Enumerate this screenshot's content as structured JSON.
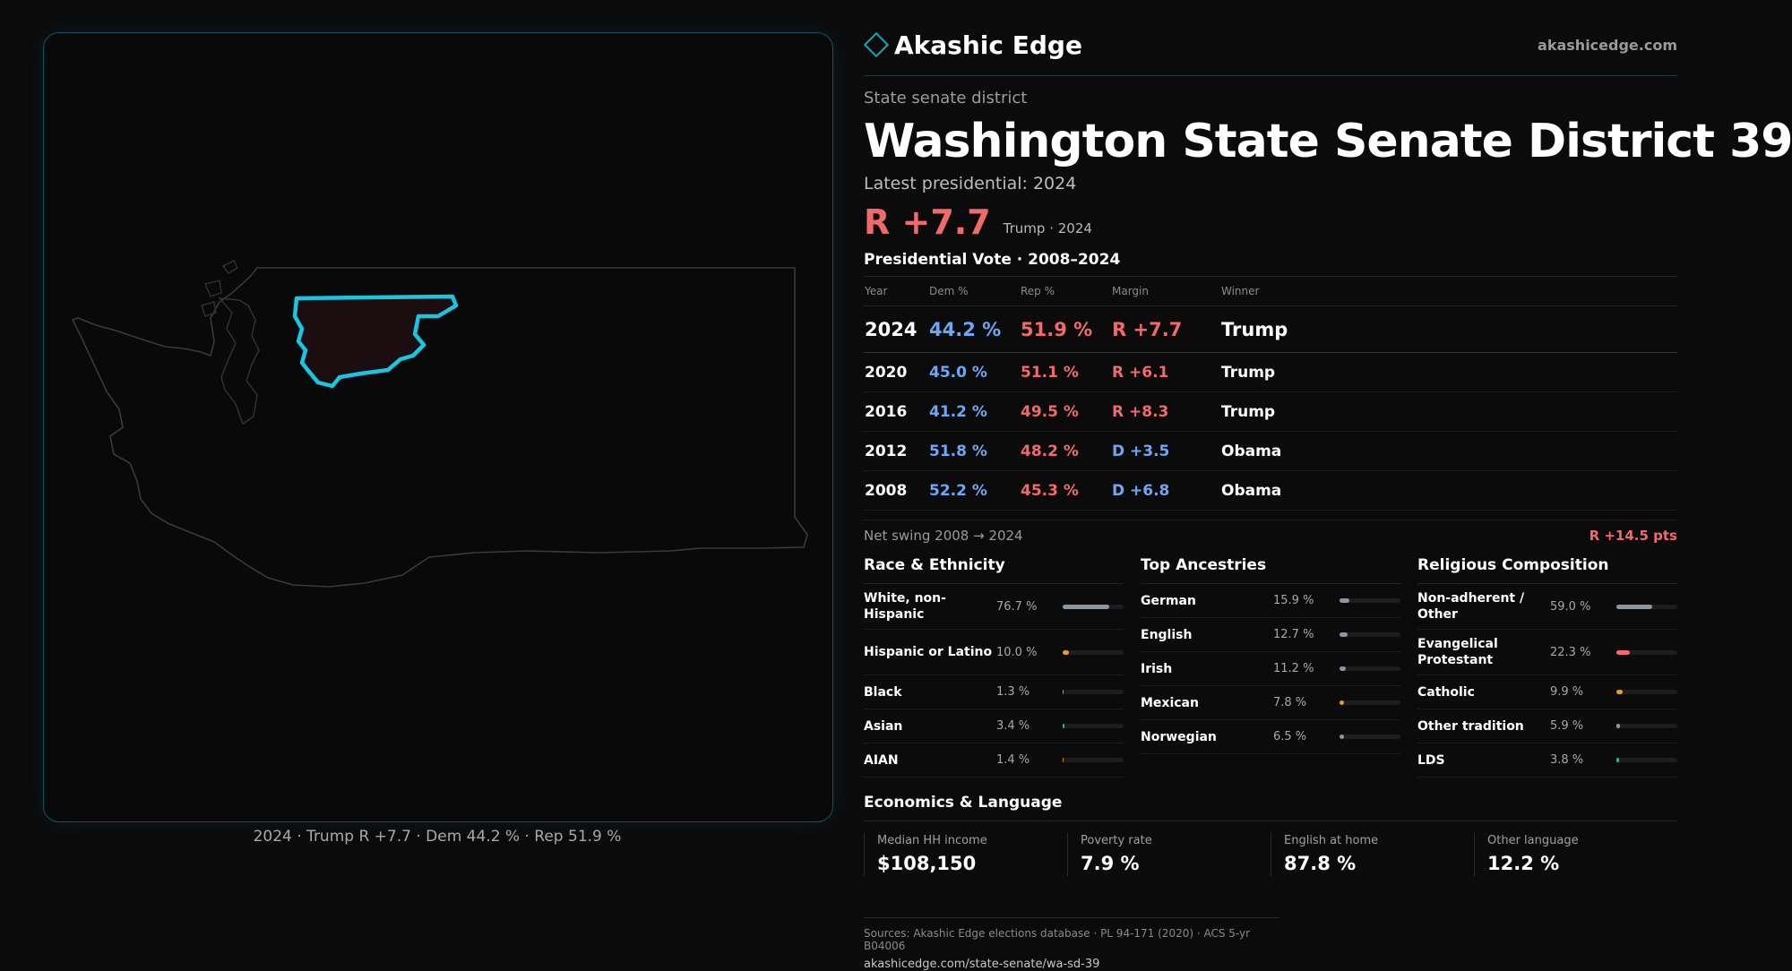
{
  "brand": {
    "name": "Akashic Edge",
    "url": "akashicedge.com",
    "accent": "#1aa6b5"
  },
  "kicker": "State senate district",
  "title": "Washington State Senate District 39",
  "latest_label": "Latest presidential: 2024",
  "headline": {
    "margin": "R +7.7",
    "sub": "Trump · 2024"
  },
  "colors": {
    "dem": "#6ea8f5",
    "rep": "#ef6b6b",
    "district": "#19c6e0"
  },
  "votes": {
    "title": "Presidential Vote · 2008–2024",
    "headers": [
      "Year",
      "Dem %",
      "Rep %",
      "Margin",
      "Winner"
    ],
    "rows": [
      {
        "year": "2024",
        "dem": "44.2 %",
        "rep": "51.9 %",
        "margin": "R +7.7",
        "party": "R",
        "winner": "Trump"
      },
      {
        "year": "2020",
        "dem": "45.0 %",
        "rep": "51.1 %",
        "margin": "R +6.1",
        "party": "R",
        "winner": "Trump"
      },
      {
        "year": "2016",
        "dem": "41.2 %",
        "rep": "49.5 %",
        "margin": "R +8.3",
        "party": "R",
        "winner": "Trump"
      },
      {
        "year": "2012",
        "dem": "51.8 %",
        "rep": "48.2 %",
        "margin": "D +3.5",
        "party": "D",
        "winner": "Obama"
      },
      {
        "year": "2008",
        "dem": "52.2 %",
        "rep": "45.3 %",
        "margin": "D +6.8",
        "party": "D",
        "winner": "Obama"
      }
    ]
  },
  "swing": {
    "label": "Net swing 2008 → 2024",
    "value": "R +14.5 pts"
  },
  "race": {
    "title": "Race & Ethnicity",
    "items": [
      {
        "label": "White, non-Hispanic",
        "pct": "76.7 %",
        "value": 0.767,
        "color": "#8d96a3"
      },
      {
        "label": "Hispanic or Latino",
        "pct": "10.0 %",
        "value": 0.1,
        "color": "#e0a020"
      },
      {
        "label": "Black",
        "pct": "1.3 %",
        "value": 0.013,
        "color": "#8d96a3"
      },
      {
        "label": "Asian",
        "pct": "3.4 %",
        "value": 0.034,
        "color": "#2bb3a0"
      },
      {
        "label": "AIAN",
        "pct": "1.4 %",
        "value": 0.014,
        "color": "#e07a20"
      }
    ]
  },
  "ancestry": {
    "title": "Top Ancestries",
    "items": [
      {
        "label": "German",
        "pct": "15.9 %",
        "value": 0.159,
        "color": "#8d96a3"
      },
      {
        "label": "English",
        "pct": "12.7 %",
        "value": 0.127,
        "color": "#8d96a3"
      },
      {
        "label": "Irish",
        "pct": "11.2 %",
        "value": 0.112,
        "color": "#8d96a3"
      },
      {
        "label": "Mexican",
        "pct": "7.8 %",
        "value": 0.078,
        "color": "#e0a020"
      },
      {
        "label": "Norwegian",
        "pct": "6.5 %",
        "value": 0.065,
        "color": "#8d96a3"
      }
    ]
  },
  "religion": {
    "title": "Religious Composition",
    "items": [
      {
        "label": "Non-adherent / Other",
        "pct": "59.0 %",
        "value": 0.59,
        "color": "#8d96a3"
      },
      {
        "label": "Evangelical Protestant",
        "pct": "22.3 %",
        "value": 0.223,
        "color": "#ef6b6b"
      },
      {
        "label": "Catholic",
        "pct": "9.9 %",
        "value": 0.099,
        "color": "#e0a020"
      },
      {
        "label": "Other tradition",
        "pct": "5.9 %",
        "value": 0.059,
        "color": "#8d96a3"
      },
      {
        "label": "LDS",
        "pct": "3.8 %",
        "value": 0.038,
        "color": "#2bb3a0"
      }
    ]
  },
  "economics": {
    "title": "Economics & Language",
    "stats": [
      {
        "label": "Median HH income",
        "value": "$108,150"
      },
      {
        "label": "Poverty rate",
        "value": "7.9 %"
      },
      {
        "label": "English at home",
        "value": "87.8 %"
      },
      {
        "label": "Other language",
        "value": "12.2 %"
      }
    ]
  },
  "map_caption": "2024 · Trump R +7.7 · Dem 44.2 % · Rep 51.9 %",
  "sources": {
    "text": "Sources: Akashic Edge elections database · PL 94-171 (2020) · ACS 5-yr B04006",
    "url": "akashicedge.com/state-senate/wa-sd-39"
  }
}
